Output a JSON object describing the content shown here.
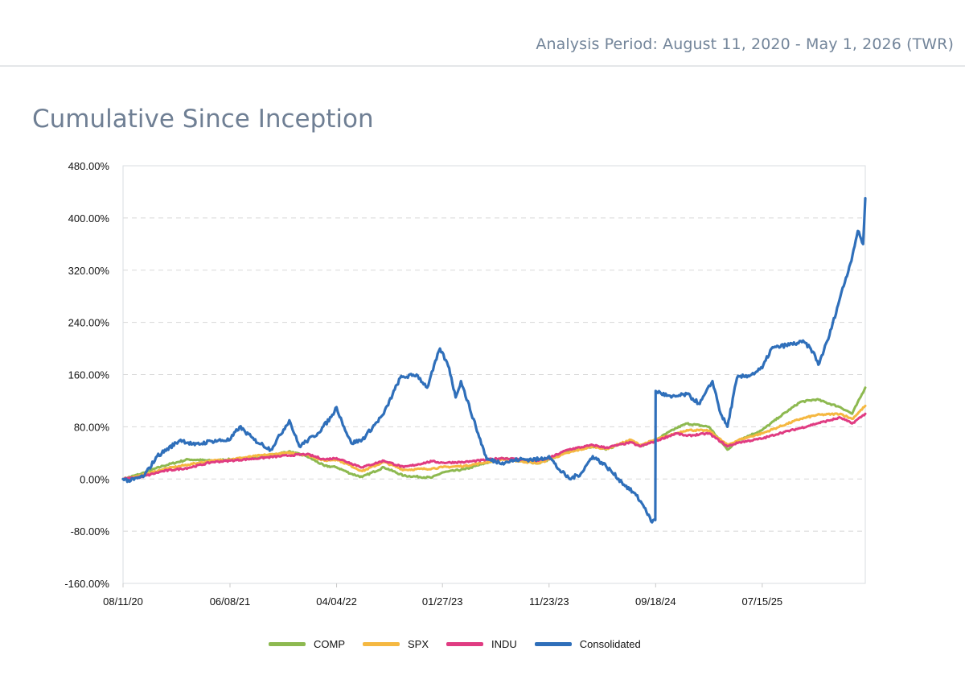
{
  "header": {
    "analysis_period": "Analysis Period: August 11, 2020 - May 1, 2026 (TWR)"
  },
  "page_title": "Cumulative Since Inception",
  "chart_data": {
    "type": "line",
    "title": "",
    "xlabel": "",
    "ylabel": "",
    "ylim": [
      -160,
      480
    ],
    "xlim": [
      "2020-08-11",
      "2026-05-01"
    ],
    "y_ticks": [
      480,
      400,
      320,
      240,
      160,
      80,
      0,
      -80,
      -160
    ],
    "y_tick_labels": [
      "480.00%",
      "400.00%",
      "320.00%",
      "240.00%",
      "160.00%",
      "80.00%",
      "0.00%",
      "-80.00%",
      "-160.00%"
    ],
    "x_ticks": [
      "2020-08-11",
      "2021-06-08",
      "2022-04-04",
      "2023-01-27",
      "2023-11-23",
      "2024-09-18",
      "2025-07-15"
    ],
    "x_tick_labels": [
      "08/11/20",
      "06/08/21",
      "04/04/22",
      "01/27/23",
      "11/23/23",
      "09/18/24",
      "07/15/25"
    ],
    "grid": true,
    "legend_position": "bottom",
    "series": [
      {
        "name": "COMP",
        "color": "#8db950",
        "points": [
          [
            "2020-08-11",
            0
          ],
          [
            "2020-10-01",
            8
          ],
          [
            "2020-12-01",
            20
          ],
          [
            "2021-02-10",
            30
          ],
          [
            "2021-04-20",
            28
          ],
          [
            "2021-06-08",
            30
          ],
          [
            "2021-09-01",
            33
          ],
          [
            "2021-11-20",
            42
          ],
          [
            "2022-01-10",
            35
          ],
          [
            "2022-03-01",
            20
          ],
          [
            "2022-04-04",
            18
          ],
          [
            "2022-05-15",
            8
          ],
          [
            "2022-06-15",
            3
          ],
          [
            "2022-08-15",
            18
          ],
          [
            "2022-10-10",
            5
          ],
          [
            "2022-12-28",
            2
          ],
          [
            "2023-01-27",
            10
          ],
          [
            "2023-04-01",
            15
          ],
          [
            "2023-07-15",
            32
          ],
          [
            "2023-10-25",
            24
          ],
          [
            "2023-11-23",
            30
          ],
          [
            "2024-01-15",
            42
          ],
          [
            "2024-03-25",
            50
          ],
          [
            "2024-05-01",
            45
          ],
          [
            "2024-07-10",
            60
          ],
          [
            "2024-08-05",
            50
          ],
          [
            "2024-09-18",
            60
          ],
          [
            "2024-11-15",
            78
          ],
          [
            "2024-12-15",
            85
          ],
          [
            "2025-02-15",
            80
          ],
          [
            "2025-04-08",
            45
          ],
          [
            "2025-05-10",
            60
          ],
          [
            "2025-07-15",
            75
          ],
          [
            "2025-09-01",
            95
          ],
          [
            "2025-10-30",
            118
          ],
          [
            "2025-12-15",
            122
          ],
          [
            "2026-02-20",
            110
          ],
          [
            "2026-03-25",
            100
          ],
          [
            "2026-05-01",
            140
          ]
        ]
      },
      {
        "name": "SPX",
        "color": "#f5b841",
        "points": [
          [
            "2020-08-11",
            0
          ],
          [
            "2020-10-01",
            5
          ],
          [
            "2020-12-01",
            15
          ],
          [
            "2021-02-10",
            22
          ],
          [
            "2021-04-20",
            28
          ],
          [
            "2021-06-08",
            30
          ],
          [
            "2021-09-01",
            36
          ],
          [
            "2021-11-20",
            40
          ],
          [
            "2022-01-10",
            37
          ],
          [
            "2022-03-01",
            28
          ],
          [
            "2022-04-04",
            30
          ],
          [
            "2022-05-15",
            20
          ],
          [
            "2022-06-15",
            12
          ],
          [
            "2022-08-15",
            26
          ],
          [
            "2022-10-10",
            14
          ],
          [
            "2022-12-28",
            16
          ],
          [
            "2023-01-27",
            18
          ],
          [
            "2023-04-01",
            20
          ],
          [
            "2023-07-15",
            30
          ],
          [
            "2023-10-25",
            24
          ],
          [
            "2023-11-23",
            30
          ],
          [
            "2024-01-15",
            40
          ],
          [
            "2024-03-25",
            50
          ],
          [
            "2024-05-01",
            46
          ],
          [
            "2024-07-10",
            60
          ],
          [
            "2024-08-05",
            52
          ],
          [
            "2024-09-18",
            60
          ],
          [
            "2024-11-15",
            70
          ],
          [
            "2024-12-15",
            75
          ],
          [
            "2025-02-15",
            74
          ],
          [
            "2025-04-08",
            52
          ],
          [
            "2025-05-10",
            60
          ],
          [
            "2025-07-15",
            70
          ],
          [
            "2025-09-01",
            80
          ],
          [
            "2025-10-30",
            92
          ],
          [
            "2025-12-15",
            98
          ],
          [
            "2026-02-20",
            100
          ],
          [
            "2026-03-25",
            92
          ],
          [
            "2026-05-01",
            112
          ]
        ]
      },
      {
        "name": "INDU",
        "color": "#e03c82",
        "points": [
          [
            "2020-08-11",
            0
          ],
          [
            "2020-10-01",
            3
          ],
          [
            "2020-12-01",
            12
          ],
          [
            "2021-02-10",
            17
          ],
          [
            "2021-04-20",
            26
          ],
          [
            "2021-06-08",
            28
          ],
          [
            "2021-09-01",
            32
          ],
          [
            "2021-11-20",
            36
          ],
          [
            "2022-01-10",
            38
          ],
          [
            "2022-03-01",
            30
          ],
          [
            "2022-04-04",
            32
          ],
          [
            "2022-05-15",
            24
          ],
          [
            "2022-06-15",
            18
          ],
          [
            "2022-08-15",
            28
          ],
          [
            "2022-10-10",
            18
          ],
          [
            "2022-12-28",
            27
          ],
          [
            "2023-01-27",
            25
          ],
          [
            "2023-04-01",
            26
          ],
          [
            "2023-07-15",
            32
          ],
          [
            "2023-10-25",
            28
          ],
          [
            "2023-11-23",
            32
          ],
          [
            "2024-01-15",
            45
          ],
          [
            "2024-03-25",
            52
          ],
          [
            "2024-05-01",
            48
          ],
          [
            "2024-07-10",
            56
          ],
          [
            "2024-08-05",
            50
          ],
          [
            "2024-09-18",
            58
          ],
          [
            "2024-11-15",
            70
          ],
          [
            "2024-12-15",
            66
          ],
          [
            "2025-02-15",
            70
          ],
          [
            "2025-04-08",
            50
          ],
          [
            "2025-05-10",
            56
          ],
          [
            "2025-07-15",
            62
          ],
          [
            "2025-09-01",
            70
          ],
          [
            "2025-10-30",
            78
          ],
          [
            "2025-12-15",
            85
          ],
          [
            "2026-02-20",
            94
          ],
          [
            "2026-03-25",
            85
          ],
          [
            "2026-05-01",
            100
          ]
        ]
      },
      {
        "name": "Consolidated",
        "color": "#2f6fba",
        "points": [
          [
            "2020-08-11",
            0
          ],
          [
            "2020-09-01",
            -3
          ],
          [
            "2020-10-10",
            5
          ],
          [
            "2020-11-15",
            35
          ],
          [
            "2021-01-20",
            60
          ],
          [
            "2021-03-01",
            52
          ],
          [
            "2021-04-15",
            58
          ],
          [
            "2021-06-08",
            60
          ],
          [
            "2021-07-05",
            80
          ],
          [
            "2021-08-15",
            60
          ],
          [
            "2021-10-01",
            45
          ],
          [
            "2021-11-22",
            90
          ],
          [
            "2021-12-20",
            50
          ],
          [
            "2022-02-10",
            70
          ],
          [
            "2022-03-20",
            95
          ],
          [
            "2022-04-04",
            110
          ],
          [
            "2022-04-25",
            80
          ],
          [
            "2022-05-15",
            55
          ],
          [
            "2022-06-15",
            60
          ],
          [
            "2022-08-15",
            100
          ],
          [
            "2022-09-30",
            155
          ],
          [
            "2022-11-15",
            160
          ],
          [
            "2022-12-15",
            140
          ],
          [
            "2023-01-20",
            200
          ],
          [
            "2023-02-15",
            170
          ],
          [
            "2023-03-05",
            125
          ],
          [
            "2023-03-20",
            150
          ],
          [
            "2023-05-01",
            80
          ],
          [
            "2023-06-01",
            30
          ],
          [
            "2023-07-15",
            25
          ],
          [
            "2023-09-01",
            30
          ],
          [
            "2023-10-27",
            30
          ],
          [
            "2023-11-23",
            35
          ],
          [
            "2023-12-20",
            15
          ],
          [
            "2024-01-20",
            0
          ],
          [
            "2024-02-20",
            8
          ],
          [
            "2024-03-25",
            35
          ],
          [
            "2024-05-01",
            20
          ],
          [
            "2024-06-15",
            -5
          ],
          [
            "2024-07-25",
            -25
          ],
          [
            "2024-08-20",
            -45
          ],
          [
            "2024-09-05",
            -65
          ],
          [
            "2024-09-17",
            -63
          ],
          [
            "2024-09-18",
            135
          ],
          [
            "2024-11-01",
            125
          ],
          [
            "2024-12-15",
            130
          ],
          [
            "2025-01-20",
            115
          ],
          [
            "2025-02-25",
            150
          ],
          [
            "2025-03-20",
            100
          ],
          [
            "2025-04-08",
            80
          ],
          [
            "2025-05-05",
            155
          ],
          [
            "2025-06-15",
            160
          ],
          [
            "2025-07-15",
            170
          ],
          [
            "2025-08-10",
            200
          ],
          [
            "2025-09-20",
            205
          ],
          [
            "2025-11-10",
            210
          ],
          [
            "2025-12-05",
            195
          ],
          [
            "2025-12-20",
            175
          ],
          [
            "2026-01-20",
            220
          ],
          [
            "2026-02-20",
            280
          ],
          [
            "2026-03-20",
            330
          ],
          [
            "2026-04-10",
            380
          ],
          [
            "2026-04-25",
            360
          ],
          [
            "2026-05-01",
            430
          ]
        ]
      }
    ]
  }
}
